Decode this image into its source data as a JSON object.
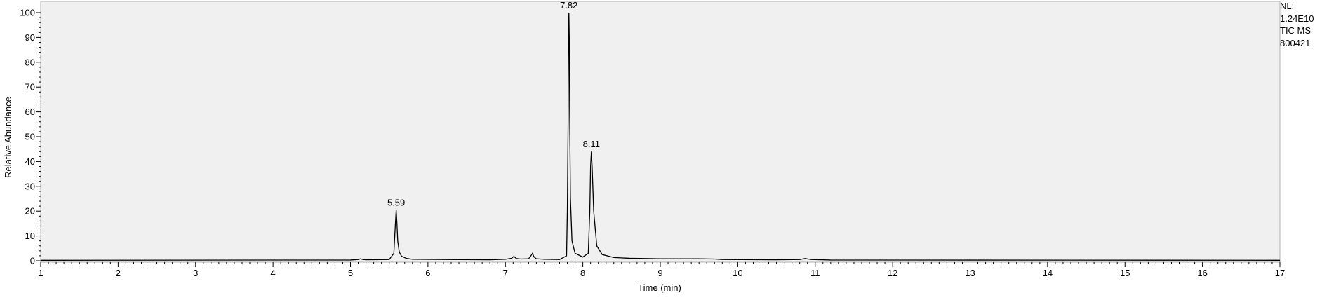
{
  "chart_data": {
    "type": "line",
    "title": "",
    "xlabel": "Time (min)",
    "ylabel": "Relative Abundance",
    "xlim": [
      1,
      17
    ],
    "ylim": [
      0,
      100
    ],
    "x_ticks": [
      "1",
      "2",
      "3",
      "4",
      "5",
      "6",
      "7",
      "8",
      "9",
      "10",
      "11",
      "12",
      "13",
      "14",
      "15",
      "16",
      "17"
    ],
    "y_ticks": [
      "0",
      "10",
      "20",
      "30",
      "40",
      "50",
      "60",
      "70",
      "80",
      "90",
      "100"
    ],
    "peak_labels": [
      {
        "x": 5.59,
        "y": 20.5,
        "label": "5.59"
      },
      {
        "x": 7.82,
        "y": 100,
        "label": "7.82"
      },
      {
        "x": 8.11,
        "y": 44,
        "label": "8.11"
      }
    ],
    "series": [
      {
        "x": [
          1.0,
          5.0,
          5.1,
          5.13,
          5.16,
          5.2,
          5.5,
          5.56,
          5.58,
          5.59,
          5.6,
          5.61,
          5.63,
          5.66,
          5.72,
          5.8,
          6.8,
          7.0,
          7.08,
          7.11,
          7.14,
          7.2,
          7.3,
          7.33,
          7.35,
          7.37,
          7.4,
          7.5,
          7.7,
          7.79,
          7.8,
          7.81,
          7.815,
          7.82,
          7.825,
          7.83,
          7.84,
          7.86,
          7.9,
          8.0,
          8.07,
          8.09,
          8.1,
          8.11,
          8.12,
          8.14,
          8.18,
          8.25,
          8.4,
          8.6,
          9.0,
          9.5,
          9.7,
          9.8,
          10.5,
          10.8,
          10.87,
          10.95,
          11.2,
          17.0
        ],
        "y": [
          0.2,
          0.3,
          0.5,
          0.8,
          0.5,
          0.4,
          0.5,
          3.0,
          15.0,
          20.5,
          15.0,
          8.0,
          3.5,
          1.8,
          1.0,
          0.6,
          0.4,
          0.6,
          1.0,
          1.8,
          0.9,
          0.7,
          0.8,
          2.0,
          3.0,
          1.5,
          0.8,
          0.6,
          0.5,
          2.0,
          20.0,
          56.0,
          90.0,
          100.0,
          90.0,
          60.0,
          25.0,
          8.0,
          3.0,
          1.5,
          3.0,
          20.0,
          38.0,
          44.0,
          38.0,
          20.0,
          6.0,
          2.5,
          1.3,
          1.0,
          0.8,
          0.8,
          0.7,
          0.5,
          0.4,
          0.5,
          0.9,
          0.5,
          0.3,
          0.2
        ]
      }
    ],
    "grid": false,
    "plot_background": "#f0f0f0",
    "line_color": "#000000"
  },
  "info": {
    "lines": [
      "NL:",
      "1.24E10",
      "TIC  MS",
      "800421"
    ]
  }
}
